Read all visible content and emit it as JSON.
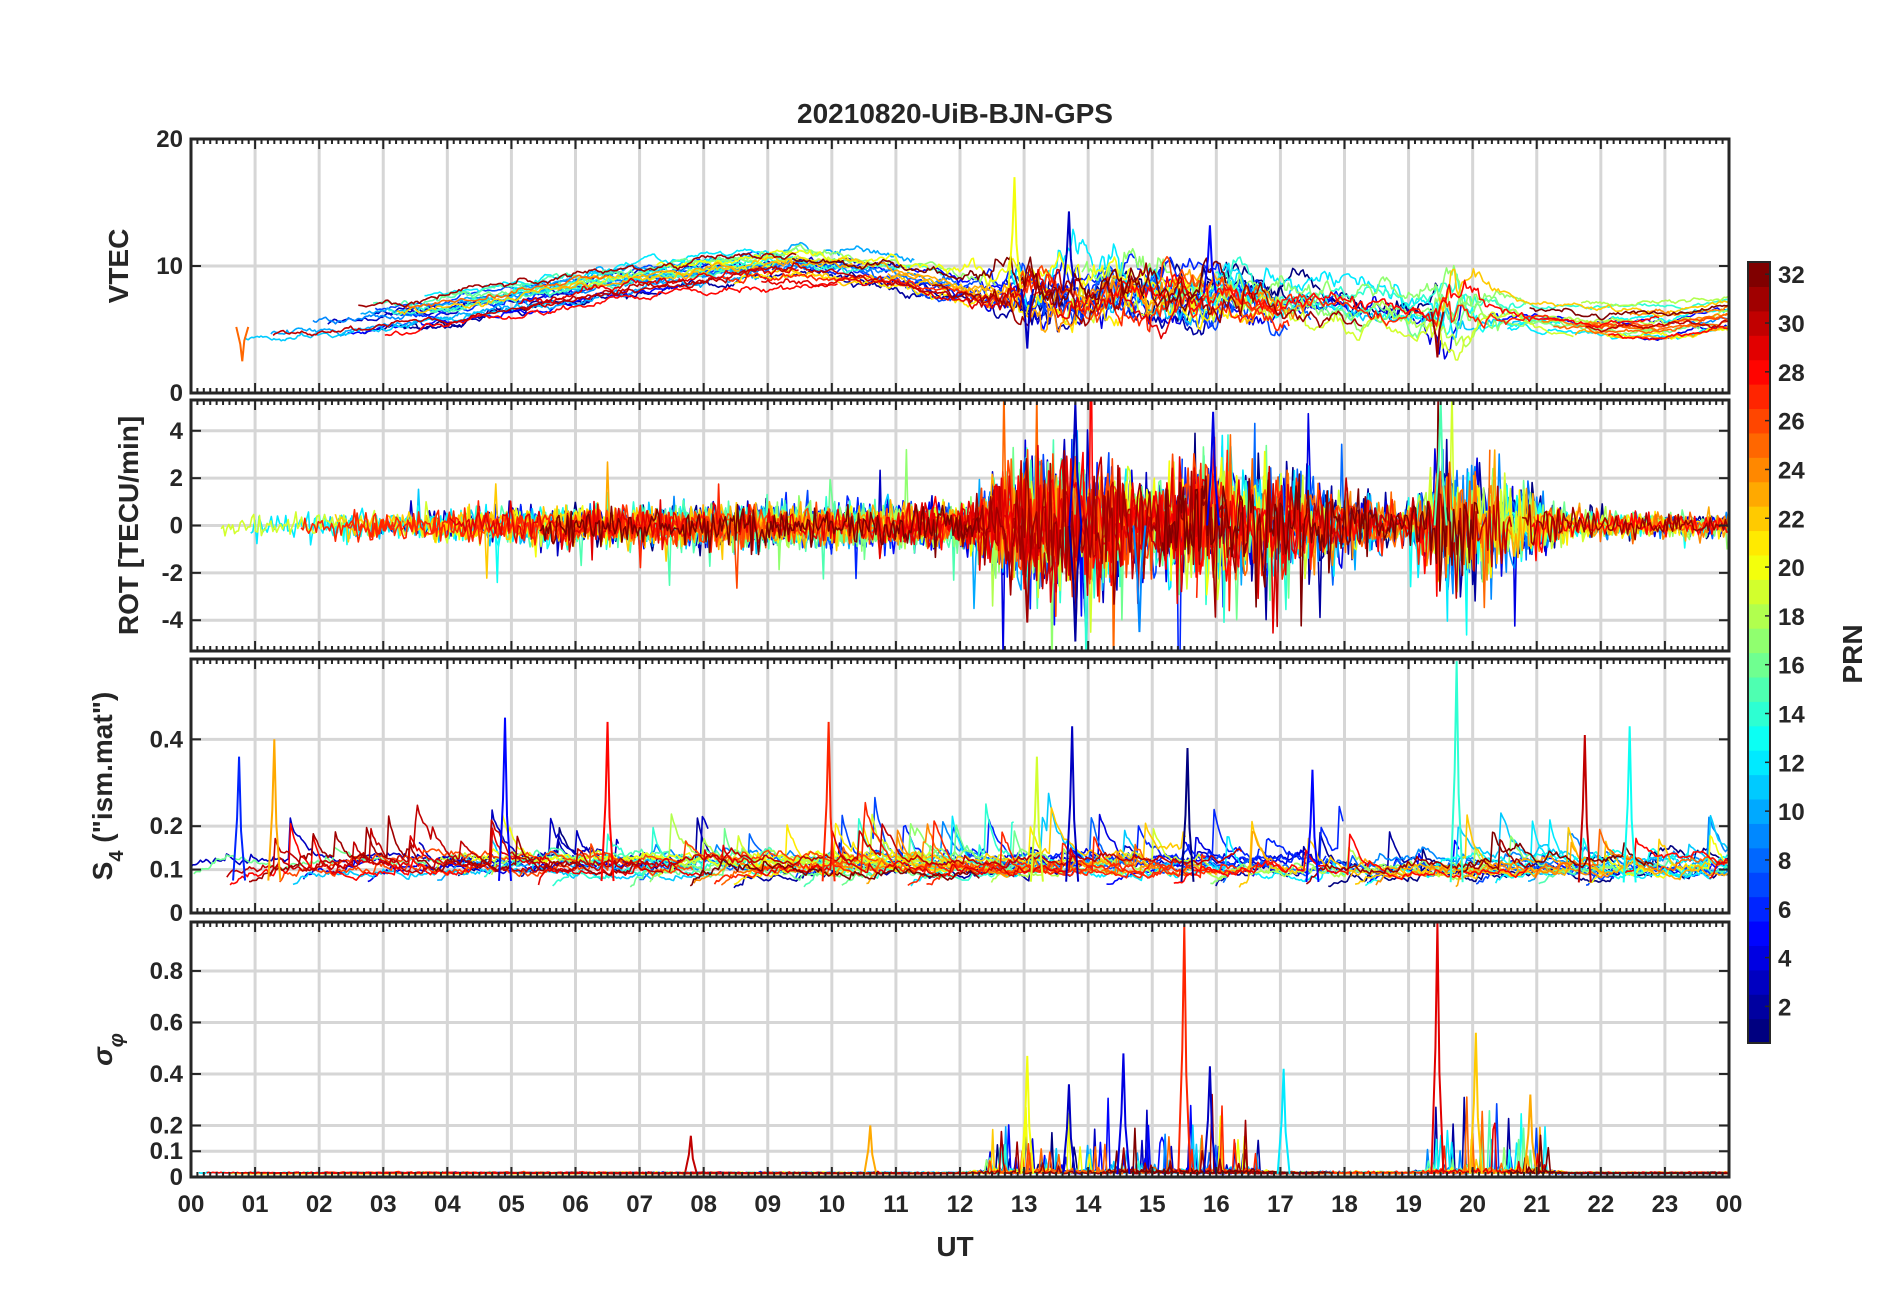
{
  "chart_data": [
    {
      "type": "line",
      "title": "20210820-UiB-BJN-GPS",
      "ylabel": "VTEC",
      "ylim": [
        0,
        20
      ],
      "yticks": [
        "0",
        "10",
        "20"
      ],
      "ytick_values": [
        0,
        10,
        20
      ],
      "xlim": [
        0,
        24
      ],
      "grid": true,
      "seed": 11,
      "baseline": [
        [
          0,
          5
        ],
        [
          2,
          5.5
        ],
        [
          4,
          6.5
        ],
        [
          6,
          8.2
        ],
        [
          8,
          9.5
        ],
        [
          9.5,
          10.2
        ],
        [
          11,
          9.5
        ],
        [
          12,
          8.6
        ],
        [
          13,
          8.2
        ],
        [
          14,
          8
        ],
        [
          15,
          8.3
        ],
        [
          16,
          7.8
        ],
        [
          17,
          7.2
        ],
        [
          18,
          7
        ],
        [
          19,
          6.3
        ],
        [
          20,
          6.5
        ],
        [
          21,
          6
        ],
        [
          22,
          5.5
        ],
        [
          23,
          5.6
        ],
        [
          24,
          6.2
        ]
      ],
      "activity": [
        [
          0,
          0.3
        ],
        [
          12,
          0.5
        ],
        [
          13,
          2
        ],
        [
          14,
          2
        ],
        [
          16,
          1.8
        ],
        [
          17.5,
          1
        ],
        [
          19.2,
          1
        ],
        [
          19.5,
          3
        ],
        [
          20.2,
          1
        ],
        [
          21,
          0.3
        ],
        [
          24,
          0.3
        ]
      ],
      "series_count": 32,
      "series_spread": 1.4,
      "spikes": [
        {
          "t": 12.85,
          "v": 17,
          "c": 20
        },
        {
          "t": 13.7,
          "v": 14.3,
          "c": 3
        },
        {
          "t": 15.9,
          "v": 13.2,
          "c": 5
        },
        {
          "t": 13.05,
          "v": 3.5,
          "c": 3
        },
        {
          "t": 19.45,
          "v": 2.8,
          "c": 31
        },
        {
          "t": 0.8,
          "v": 2.5,
          "c": 25
        }
      ]
    },
    {
      "type": "line",
      "ylabel": "ROT [TECU/min]",
      "ylim": [
        -5.3,
        5.3
      ],
      "yticks": [
        "-4",
        "-2",
        "0",
        "2",
        "4"
      ],
      "ytick_values": [
        -4,
        -2,
        0,
        2,
        4
      ],
      "xlim": [
        0,
        24
      ],
      "grid": true,
      "seed": 22,
      "baseline": [
        [
          0,
          0
        ],
        [
          24,
          0
        ]
      ],
      "activity": [
        [
          0,
          0.5
        ],
        [
          3,
          0.6
        ],
        [
          4.5,
          0.8
        ],
        [
          7,
          0.9
        ],
        [
          12,
          0.9
        ],
        [
          13,
          2.8
        ],
        [
          14,
          2.8
        ],
        [
          15,
          2
        ],
        [
          16,
          3
        ],
        [
          18,
          1.5
        ],
        [
          19,
          0.9
        ],
        [
          19.5,
          3
        ],
        [
          20.5,
          2
        ],
        [
          21.5,
          0.6
        ],
        [
          24,
          0.5
        ]
      ],
      "series_count": 32,
      "series_spread": 0,
      "spikes": [
        {
          "t": 13.8,
          "v": 5.2,
          "c": 3
        },
        {
          "t": 13.8,
          "v": -4.9,
          "c": 2
        },
        {
          "t": 15.95,
          "v": 4.8,
          "c": 4
        },
        {
          "t": 19.5,
          "v": 5.3,
          "c": 15
        },
        {
          "t": 13.05,
          "v": -4.1,
          "c": 31
        },
        {
          "t": 14.8,
          "v": -4.5,
          "c": 9
        }
      ]
    },
    {
      "type": "line",
      "ylabel": "S_4 (\"ism.mat\")",
      "ylim": [
        0,
        0.585
      ],
      "yticks": [
        "0",
        "0.1",
        "0.2",
        "0.4"
      ],
      "ytick_values": [
        0,
        0.1,
        0.2,
        0.4
      ],
      "xlim": [
        0,
        24
      ],
      "grid": true,
      "seed": 33,
      "baseline": [
        [
          0,
          0.075
        ],
        [
          24,
          0.07
        ]
      ],
      "activity": [
        [
          0,
          0.9
        ],
        [
          24,
          0.9
        ]
      ],
      "series_count": 32,
      "series_spread": 0.02,
      "spikes": [
        {
          "t": 19.75,
          "v": 0.58,
          "c": 14
        },
        {
          "t": 4.9,
          "v": 0.45,
          "c": 5
        },
        {
          "t": 6.5,
          "v": 0.44,
          "c": 28
        },
        {
          "t": 9.95,
          "v": 0.44,
          "c": 27
        },
        {
          "t": 13.75,
          "v": 0.43,
          "c": 3
        },
        {
          "t": 1.3,
          "v": 0.4,
          "c": 23
        },
        {
          "t": 21.75,
          "v": 0.41,
          "c": 30
        },
        {
          "t": 22.45,
          "v": 0.43,
          "c": 13
        },
        {
          "t": 0.75,
          "v": 0.36,
          "c": 6
        },
        {
          "t": 15.55,
          "v": 0.38,
          "c": 1
        },
        {
          "t": 17.5,
          "v": 0.33,
          "c": 5
        },
        {
          "t": 13.2,
          "v": 0.36,
          "c": 19
        }
      ]
    },
    {
      "type": "line",
      "ylabel": "σ_φ",
      "ylim": [
        0,
        0.99
      ],
      "yticks": [
        "0",
        "0.1",
        "0.2",
        "0.4",
        "0.6",
        "0.8"
      ],
      "ytick_values": [
        0,
        0.1,
        0.2,
        0.4,
        0.6,
        0.8
      ],
      "xlim": [
        0,
        24
      ],
      "grid": true,
      "seed": 44,
      "baseline": [
        [
          0,
          0.012
        ],
        [
          24,
          0.012
        ]
      ],
      "activity": [
        [
          0,
          0.3
        ],
        [
          12,
          0.3
        ],
        [
          12.5,
          1.2
        ],
        [
          14,
          1.2
        ],
        [
          14.5,
          1.3
        ],
        [
          16.5,
          1.3
        ],
        [
          17,
          0.4
        ],
        [
          19,
          0.5
        ],
        [
          19.5,
          1.4
        ],
        [
          21,
          1.4
        ],
        [
          21.5,
          0.3
        ],
        [
          24,
          0.3
        ]
      ],
      "series_count": 32,
      "series_spread": 0.004,
      "spikes": [
        {
          "t": 15.5,
          "v": 0.98,
          "c": 27
        },
        {
          "t": 19.45,
          "v": 0.99,
          "c": 29
        },
        {
          "t": 20.05,
          "v": 0.56,
          "c": 22
        },
        {
          "t": 14.55,
          "v": 0.48,
          "c": 4
        },
        {
          "t": 13.05,
          "v": 0.47,
          "c": 20
        },
        {
          "t": 17.05,
          "v": 0.42,
          "c": 12
        },
        {
          "t": 15.9,
          "v": 0.43,
          "c": 3
        },
        {
          "t": 10.6,
          "v": 0.2,
          "c": 23
        },
        {
          "t": 7.8,
          "v": 0.16,
          "c": 30
        },
        {
          "t": 13.7,
          "v": 0.36,
          "c": 3
        },
        {
          "t": 20.9,
          "v": 0.32,
          "c": 23
        }
      ]
    }
  ],
  "x_axis": {
    "label": "UT",
    "ticks": [
      "00",
      "01",
      "02",
      "03",
      "04",
      "05",
      "06",
      "07",
      "08",
      "09",
      "10",
      "11",
      "12",
      "13",
      "14",
      "15",
      "16",
      "17",
      "18",
      "19",
      "20",
      "21",
      "22",
      "23",
      "00"
    ]
  },
  "colorbar": {
    "label": "PRN",
    "min": 1,
    "max": 32,
    "ticks": [
      "2",
      "4",
      "6",
      "8",
      "10",
      "12",
      "14",
      "16",
      "18",
      "20",
      "22",
      "24",
      "26",
      "28",
      "30",
      "32"
    ],
    "tick_values": [
      2,
      4,
      6,
      8,
      10,
      12,
      14,
      16,
      18,
      20,
      22,
      24,
      26,
      28,
      30,
      32
    ],
    "colormap": "jet"
  }
}
